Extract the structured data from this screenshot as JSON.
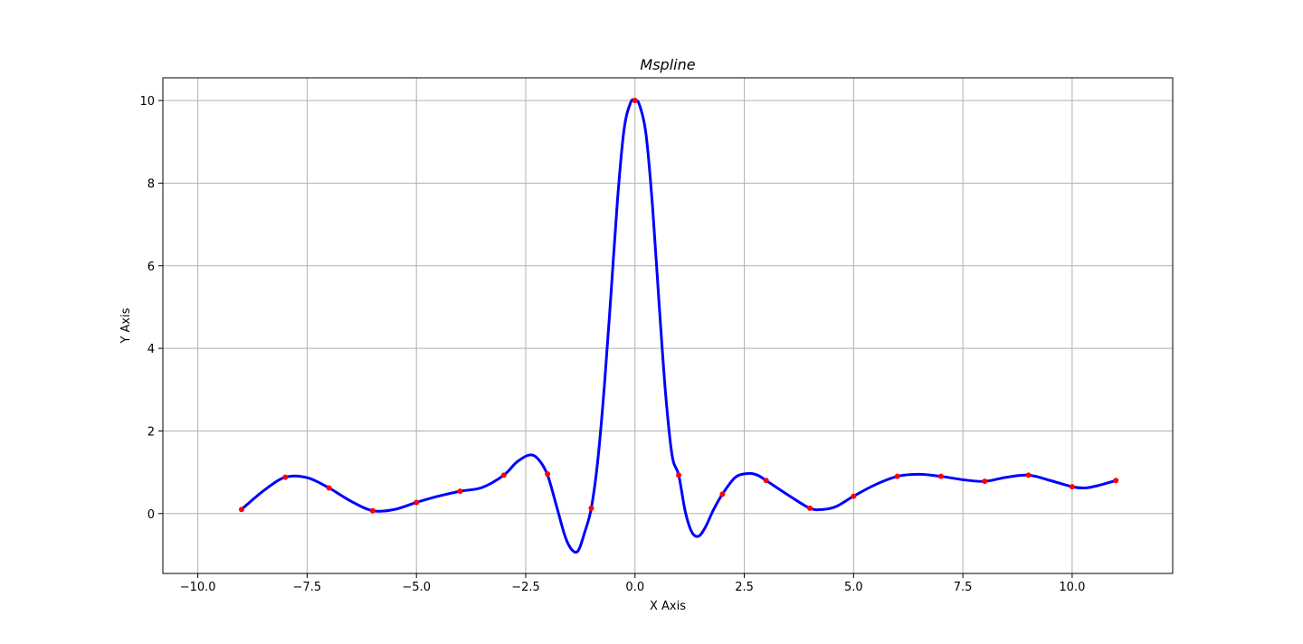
{
  "chart_data": {
    "type": "line",
    "title": "Mspline",
    "xlabel": "X Axis",
    "ylabel": "Y Axis",
    "xlim": [
      -10.8,
      12.3
    ],
    "ylim": [
      -1.45,
      10.55
    ],
    "grid": true,
    "x_ticks": [
      -10.0,
      -7.5,
      -5.0,
      -2.5,
      0.0,
      2.5,
      5.0,
      7.5,
      10.0
    ],
    "x_tick_labels": [
      "−10.0",
      "−7.5",
      "−5.0",
      "−2.5",
      "0.0",
      "2.5",
      "5.0",
      "7.5",
      "10.0"
    ],
    "y_ticks": [
      0,
      2,
      4,
      6,
      8,
      10
    ],
    "y_tick_labels": [
      "0",
      "2",
      "4",
      "6",
      "8",
      "10"
    ],
    "series": [
      {
        "kind": "curve",
        "color": "#0000ff",
        "x": [
          -9,
          -8.5,
          -8,
          -7.5,
          -7,
          -6.5,
          -6,
          -5.5,
          -5,
          -4.5,
          -4,
          -3.5,
          -3,
          -2.7,
          -2.4,
          -2.2,
          -2,
          -1.8,
          -1.6,
          -1.45,
          -1.3,
          -1.15,
          -1,
          -0.85,
          -0.7,
          -0.55,
          -0.4,
          -0.25,
          -0.1,
          0,
          0.1,
          0.25,
          0.4,
          0.55,
          0.7,
          0.85,
          1,
          1.15,
          1.3,
          1.45,
          1.6,
          1.8,
          2,
          2.3,
          2.6,
          2.8,
          3,
          3.5,
          4,
          4.3,
          4.6,
          5,
          5.5,
          6,
          6.5,
          7,
          7.5,
          8,
          8.5,
          9,
          9.5,
          10,
          10.3,
          10.6,
          11
        ],
        "y": [
          0.1,
          0.55,
          0.88,
          0.87,
          0.62,
          0.3,
          0.07,
          0.1,
          0.27,
          0.42,
          0.54,
          0.63,
          0.93,
          1.25,
          1.42,
          1.3,
          0.93,
          0.2,
          -0.55,
          -0.87,
          -0.9,
          -0.45,
          0.13,
          1.3,
          3.1,
          5.3,
          7.6,
          9.3,
          9.95,
          10.0,
          9.9,
          9.2,
          7.45,
          5.1,
          2.9,
          1.4,
          0.93,
          0.05,
          -0.45,
          -0.55,
          -0.35,
          0.1,
          0.47,
          0.88,
          0.97,
          0.93,
          0.8,
          0.45,
          0.13,
          0.1,
          0.17,
          0.42,
          0.7,
          0.9,
          0.95,
          0.9,
          0.82,
          0.78,
          0.88,
          0.93,
          0.8,
          0.65,
          0.62,
          0.68,
          0.8
        ]
      },
      {
        "kind": "points",
        "color": "#ff0000",
        "x": [
          -9,
          -8,
          -7,
          -6,
          -5,
          -4,
          -3,
          -2,
          -1,
          0,
          1,
          2,
          3,
          4,
          5,
          6,
          7,
          8,
          9,
          10,
          11
        ],
        "y": [
          0.1,
          0.88,
          0.62,
          0.07,
          0.27,
          0.54,
          0.93,
          0.96,
          0.13,
          10.0,
          0.93,
          0.47,
          0.8,
          0.13,
          0.42,
          0.9,
          0.9,
          0.78,
          0.93,
          0.65,
          0.8
        ]
      }
    ]
  }
}
